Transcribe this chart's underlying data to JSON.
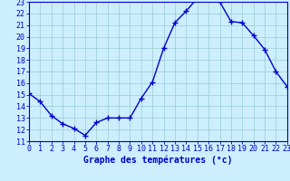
{
  "hours": [
    0,
    1,
    2,
    3,
    4,
    5,
    6,
    7,
    8,
    9,
    10,
    11,
    12,
    13,
    14,
    15,
    16,
    17,
    18,
    19,
    20,
    21,
    22,
    23
  ],
  "temps": [
    15.1,
    14.4,
    13.2,
    12.5,
    12.1,
    11.5,
    12.6,
    13.0,
    13.0,
    13.0,
    14.7,
    16.1,
    19.0,
    21.2,
    22.2,
    23.3,
    23.3,
    23.0,
    21.3,
    21.2,
    20.1,
    18.9,
    17.0,
    15.7
  ],
  "xlim": [
    0,
    23
  ],
  "ylim": [
    11,
    23
  ],
  "yticks": [
    11,
    12,
    13,
    14,
    15,
    16,
    17,
    18,
    19,
    20,
    21,
    22,
    23
  ],
  "xticks": [
    0,
    1,
    2,
    3,
    4,
    5,
    6,
    7,
    8,
    9,
    10,
    11,
    12,
    13,
    14,
    15,
    16,
    17,
    18,
    19,
    20,
    21,
    22,
    23
  ],
  "xlabel": "Graphe des températures (°c)",
  "line_color": "#0000cc",
  "marker": "+",
  "marker_size": 4,
  "marker_edge_width": 1.0,
  "line_width": 1.0,
  "bg_color": "#cceeff",
  "grid_color": "#99cccc",
  "axis_color": "#0000cc",
  "label_color": "#0000cc",
  "xlabel_fontsize": 7,
  "tick_fontsize": 6
}
